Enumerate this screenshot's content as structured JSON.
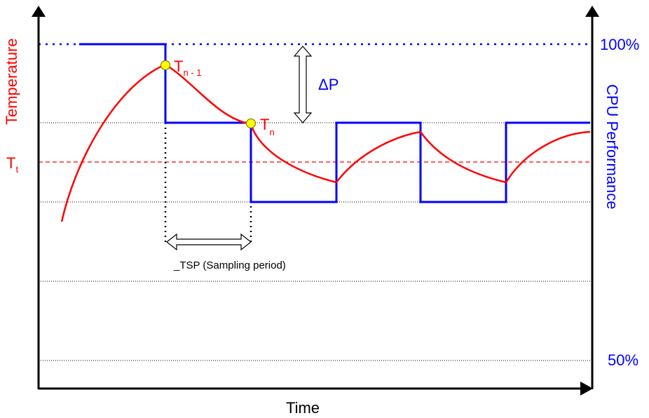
{
  "labels": {
    "y_left": "Temperature",
    "y_right": "CPU Performance",
    "x_axis": "Time",
    "pct_100": "100%",
    "pct_50": "50%",
    "target_temp_main": "T",
    "target_temp_sub": "t",
    "t_prev_main": "T",
    "t_prev_sub": "n - 1",
    "t_cur_main": "T",
    "t_cur_sub": "n",
    "delta_p": "ΔP",
    "sampling_period": "_TSP (Sampling period)"
  },
  "colors": {
    "temperature": "#ff0000",
    "performance": "#0000ff",
    "axis": "#000000",
    "marker_fill": "#ffff00",
    "marker_stroke": "#808000"
  }
}
